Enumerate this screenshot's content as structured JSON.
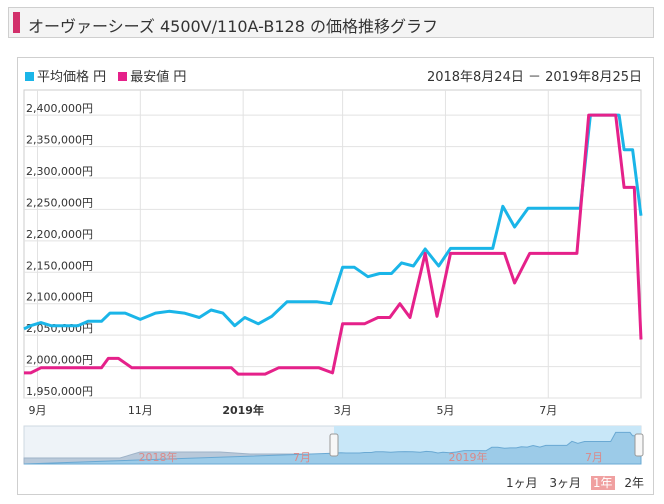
{
  "header": {
    "title": "オーヴァーシーズ 4500V/110A-B128 の価格推移グラフ"
  },
  "legend": {
    "avg_label": "平均価格 円",
    "min_label": "最安値 円"
  },
  "range_text": "2018年8月24日 － 2019年8月25日",
  "colors": {
    "avg": "#1ab5e8",
    "min": "#e5218a",
    "accent": "#d2306b"
  },
  "period_buttons": [
    {
      "label": "1ヶ月",
      "active": false
    },
    {
      "label": "3ヶ月",
      "active": false
    },
    {
      "label": "1年",
      "active": true
    },
    {
      "label": "2年",
      "active": false
    }
  ],
  "navigator": {
    "labels": [
      "2018年",
      "7月",
      "2019年",
      "7月"
    ]
  },
  "chart_data": {
    "type": "line",
    "x_start": "2018-08-24",
    "x_end": "2019-08-25",
    "y_range": [
      1950000,
      2440000
    ],
    "y_ticks": [
      "1,950,000円",
      "2,000,000円",
      "2,050,000円",
      "2,100,000円",
      "2,150,000円",
      "2,200,000円",
      "2,250,000円",
      "2,300,000円",
      "2,350,000円",
      "2,400,000円"
    ],
    "x_ticks": [
      {
        "label": "9月",
        "date": "2018-09-01",
        "bold": false
      },
      {
        "label": "11月",
        "date": "2018-11-01",
        "bold": false
      },
      {
        "label": "2019年",
        "date": "2019-01-01",
        "bold": true
      },
      {
        "label": "3月",
        "date": "2019-03-01",
        "bold": false
      },
      {
        "label": "5月",
        "date": "2019-05-01",
        "bold": false
      },
      {
        "label": "7月",
        "date": "2019-07-01",
        "bold": false
      }
    ],
    "grid": true,
    "series": [
      {
        "name": "平均価格 円",
        "points": [
          [
            "2018-08-24",
            2060000
          ],
          [
            "2018-08-28",
            2065000
          ],
          [
            "2018-09-03",
            2070000
          ],
          [
            "2018-09-09",
            2065000
          ],
          [
            "2018-09-17",
            2065000
          ],
          [
            "2018-09-25",
            2065000
          ],
          [
            "2018-10-01",
            2072000
          ],
          [
            "2018-10-09",
            2072000
          ],
          [
            "2018-10-14",
            2085000
          ],
          [
            "2018-10-23",
            2085000
          ],
          [
            "2018-11-01",
            2075000
          ],
          [
            "2018-11-10",
            2085000
          ],
          [
            "2018-11-18",
            2088000
          ],
          [
            "2018-11-27",
            2085000
          ],
          [
            "2018-12-06",
            2078000
          ],
          [
            "2018-12-13",
            2090000
          ],
          [
            "2018-12-20",
            2085000
          ],
          [
            "2018-12-27",
            2065000
          ],
          [
            "2019-01-02",
            2078000
          ],
          [
            "2019-01-10",
            2068000
          ],
          [
            "2019-01-18",
            2080000
          ],
          [
            "2019-01-27",
            2103000
          ],
          [
            "2019-02-04",
            2103000
          ],
          [
            "2019-02-14",
            2103000
          ],
          [
            "2019-02-22",
            2100000
          ],
          [
            "2019-03-01",
            2158000
          ],
          [
            "2019-03-08",
            2158000
          ],
          [
            "2019-03-16",
            2143000
          ],
          [
            "2019-03-23",
            2148000
          ],
          [
            "2019-03-30",
            2148000
          ],
          [
            "2019-04-05",
            2165000
          ],
          [
            "2019-04-12",
            2160000
          ],
          [
            "2019-04-19",
            2187000
          ],
          [
            "2019-04-27",
            2160000
          ],
          [
            "2019-05-04",
            2188000
          ],
          [
            "2019-05-12",
            2188000
          ],
          [
            "2019-05-21",
            2188000
          ],
          [
            "2019-05-29",
            2188000
          ],
          [
            "2019-06-04",
            2255000
          ],
          [
            "2019-06-11",
            2222000
          ],
          [
            "2019-06-19",
            2252000
          ],
          [
            "2019-06-27",
            2252000
          ],
          [
            "2019-07-05",
            2252000
          ],
          [
            "2019-07-13",
            2252000
          ],
          [
            "2019-07-20",
            2252000
          ],
          [
            "2019-07-26",
            2400000
          ],
          [
            "2019-08-04",
            2400000
          ],
          [
            "2019-08-12",
            2400000
          ],
          [
            "2019-08-15",
            2345000
          ],
          [
            "2019-08-20",
            2345000
          ],
          [
            "2019-08-25",
            2240000
          ]
        ]
      },
      {
        "name": "最安値 円",
        "points": [
          [
            "2018-08-24",
            1990000
          ],
          [
            "2018-08-28",
            1990000
          ],
          [
            "2018-09-03",
            1998000
          ],
          [
            "2018-09-17",
            1998000
          ],
          [
            "2018-10-01",
            1998000
          ],
          [
            "2018-10-09",
            1998000
          ],
          [
            "2018-10-13",
            2013000
          ],
          [
            "2018-10-19",
            2013000
          ],
          [
            "2018-10-27",
            1998000
          ],
          [
            "2018-11-16",
            1998000
          ],
          [
            "2018-12-08",
            1998000
          ],
          [
            "2018-12-25",
            1998000
          ],
          [
            "2018-12-29",
            1988000
          ],
          [
            "2019-01-14",
            1988000
          ],
          [
            "2019-01-22",
            1998000
          ],
          [
            "2019-02-15",
            1998000
          ],
          [
            "2019-02-23",
            1990000
          ],
          [
            "2019-03-01",
            2068000
          ],
          [
            "2019-03-14",
            2068000
          ],
          [
            "2019-03-22",
            2078000
          ],
          [
            "2019-03-29",
            2078000
          ],
          [
            "2019-04-04",
            2100000
          ],
          [
            "2019-04-10",
            2078000
          ],
          [
            "2019-04-19",
            2180000
          ],
          [
            "2019-04-26",
            2080000
          ],
          [
            "2019-05-04",
            2180000
          ],
          [
            "2019-05-20",
            2180000
          ],
          [
            "2019-06-05",
            2180000
          ],
          [
            "2019-06-11",
            2133000
          ],
          [
            "2019-06-20",
            2180000
          ],
          [
            "2019-07-01",
            2180000
          ],
          [
            "2019-07-18",
            2180000
          ],
          [
            "2019-07-25",
            2400000
          ],
          [
            "2019-08-10",
            2400000
          ],
          [
            "2019-08-15",
            2285000
          ],
          [
            "2019-08-21",
            2285000
          ],
          [
            "2019-08-25",
            2043000
          ]
        ]
      }
    ]
  }
}
